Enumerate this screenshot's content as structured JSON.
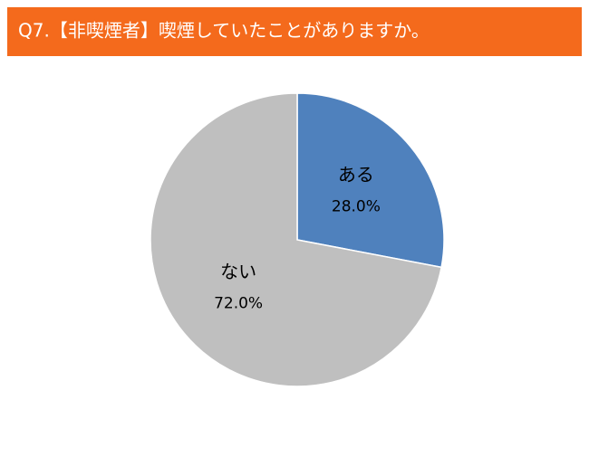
{
  "chart_data": {
    "type": "pie",
    "title": "Q7.【非喫煙者】喫煙していたことがありますか。",
    "categories": [
      "ある",
      "ない"
    ],
    "values": [
      28.0,
      72.0
    ],
    "value_labels": [
      "28.0%",
      "72.0%"
    ],
    "colors": [
      "#4f81bd",
      "#bfbfbf"
    ]
  }
}
